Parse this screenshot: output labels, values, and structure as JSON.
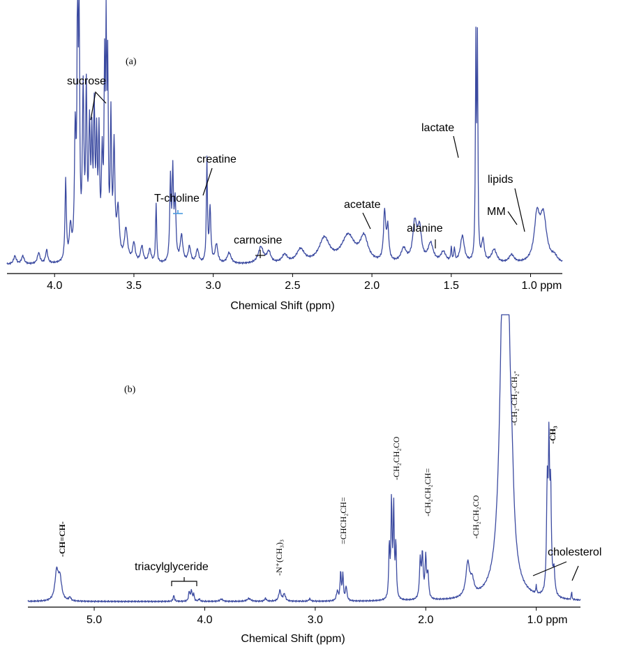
{
  "chart_data": [
    {
      "type": "line",
      "panel_label": "(a)",
      "xlabel": "Chemical Shift (ppm)",
      "xlim": [
        4.3,
        0.8
      ],
      "ticks": [
        4.0,
        3.5,
        3.0,
        2.5,
        2.0,
        1.5
      ],
      "tick_labels": [
        "4.0",
        "3.5",
        "3.0",
        "2.5",
        "2.0",
        "1.5"
      ],
      "last_tick": 1.0,
      "last_tick_label": "1.0 ppm",
      "baseline": 0.02,
      "peaks": [
        {
          "x": 4.25,
          "h": 0.03,
          "w": 0.01
        },
        {
          "x": 4.2,
          "h": 0.03,
          "w": 0.01
        },
        {
          "x": 4.1,
          "h": 0.04,
          "w": 0.01
        },
        {
          "x": 4.05,
          "h": 0.05,
          "w": 0.008
        },
        {
          "x": 3.93,
          "h": 0.3,
          "w": 0.005
        },
        {
          "x": 3.9,
          "h": 0.12,
          "w": 0.008
        },
        {
          "x": 3.87,
          "h": 0.45,
          "w": 0.006
        },
        {
          "x": 3.855,
          "h": 1.0,
          "w": 0.004
        },
        {
          "x": 3.845,
          "h": 0.85,
          "w": 0.004
        },
        {
          "x": 3.82,
          "h": 0.6,
          "w": 0.006
        },
        {
          "x": 3.8,
          "h": 0.58,
          "w": 0.005
        },
        {
          "x": 3.78,
          "h": 0.45,
          "w": 0.006
        },
        {
          "x": 3.765,
          "h": 0.38,
          "w": 0.005
        },
        {
          "x": 3.75,
          "h": 0.5,
          "w": 0.005
        },
        {
          "x": 3.735,
          "h": 0.4,
          "w": 0.005
        },
        {
          "x": 3.72,
          "h": 0.42,
          "w": 0.005
        },
        {
          "x": 3.7,
          "h": 0.35,
          "w": 0.006
        },
        {
          "x": 3.685,
          "h": 0.62,
          "w": 0.004
        },
        {
          "x": 3.675,
          "h": 0.75,
          "w": 0.004
        },
        {
          "x": 3.665,
          "h": 0.64,
          "w": 0.004
        },
        {
          "x": 3.645,
          "h": 0.5,
          "w": 0.005
        },
        {
          "x": 3.625,
          "h": 0.4,
          "w": 0.006
        },
        {
          "x": 3.6,
          "h": 0.18,
          "w": 0.01
        },
        {
          "x": 3.55,
          "h": 0.12,
          "w": 0.012
        },
        {
          "x": 3.5,
          "h": 0.07,
          "w": 0.01
        },
        {
          "x": 3.45,
          "h": 0.06,
          "w": 0.01
        },
        {
          "x": 3.4,
          "h": 0.05,
          "w": 0.01
        },
        {
          "x": 3.36,
          "h": 0.22,
          "w": 0.004
        },
        {
          "x": 3.27,
          "h": 0.3,
          "w": 0.005
        },
        {
          "x": 3.255,
          "h": 0.32,
          "w": 0.005
        },
        {
          "x": 3.24,
          "h": 0.22,
          "w": 0.006
        },
        {
          "x": 3.2,
          "h": 0.1,
          "w": 0.01
        },
        {
          "x": 3.15,
          "h": 0.06,
          "w": 0.01
        },
        {
          "x": 3.1,
          "h": 0.05,
          "w": 0.01
        },
        {
          "x": 3.04,
          "h": 0.38,
          "w": 0.004
        },
        {
          "x": 3.02,
          "h": 0.2,
          "w": 0.006
        },
        {
          "x": 2.98,
          "h": 0.07,
          "w": 0.01
        },
        {
          "x": 2.9,
          "h": 0.04,
          "w": 0.015
        },
        {
          "x": 2.7,
          "h": 0.06,
          "w": 0.02
        },
        {
          "x": 2.65,
          "h": 0.04,
          "w": 0.015
        },
        {
          "x": 2.55,
          "h": 0.03,
          "w": 0.02
        },
        {
          "x": 2.45,
          "h": 0.05,
          "w": 0.03
        },
        {
          "x": 2.3,
          "h": 0.09,
          "w": 0.04
        },
        {
          "x": 2.15,
          "h": 0.1,
          "w": 0.05
        },
        {
          "x": 2.05,
          "h": 0.09,
          "w": 0.03
        },
        {
          "x": 1.92,
          "h": 0.18,
          "w": 0.008
        },
        {
          "x": 1.9,
          "h": 0.12,
          "w": 0.008
        },
        {
          "x": 1.8,
          "h": 0.05,
          "w": 0.02
        },
        {
          "x": 1.73,
          "h": 0.14,
          "w": 0.015
        },
        {
          "x": 1.7,
          "h": 0.12,
          "w": 0.015
        },
        {
          "x": 1.63,
          "h": 0.07,
          "w": 0.02
        },
        {
          "x": 1.55,
          "h": 0.04,
          "w": 0.02
        },
        {
          "x": 1.5,
          "h": 0.05,
          "w": 0.004
        },
        {
          "x": 1.48,
          "h": 0.05,
          "w": 0.004
        },
        {
          "x": 1.43,
          "h": 0.1,
          "w": 0.015
        },
        {
          "x": 1.345,
          "h": 0.78,
          "w": 0.0035
        },
        {
          "x": 1.335,
          "h": 0.78,
          "w": 0.0035
        },
        {
          "x": 1.3,
          "h": 0.08,
          "w": 0.01
        },
        {
          "x": 1.23,
          "h": 0.05,
          "w": 0.02
        },
        {
          "x": 1.12,
          "h": 0.03,
          "w": 0.02
        },
        {
          "x": 0.96,
          "h": 0.16,
          "w": 0.02
        },
        {
          "x": 0.92,
          "h": 0.17,
          "w": 0.025
        },
        {
          "x": 0.85,
          "h": 0.02,
          "w": 0.02
        }
      ],
      "annotations": [
        {
          "label": "sucrose",
          "x": 3.85
        },
        {
          "label": "T-choline",
          "x": 3.22
        },
        {
          "label": "creatine",
          "x": 3.03
        },
        {
          "label": "carnosine",
          "x": 2.7
        },
        {
          "label": "acetate",
          "x": 1.92
        },
        {
          "label": "alanine",
          "x": 1.48
        },
        {
          "label": "lactate",
          "x": 1.33
        },
        {
          "label": "lipids",
          "x": 0.92
        },
        {
          "label": "MM",
          "x": 0.96
        }
      ]
    },
    {
      "type": "line",
      "panel_label": "(b)",
      "xlabel": "Chemical Shift (ppm)",
      "xlim": [
        5.6,
        0.6
      ],
      "ticks": [
        5.0,
        4.0,
        3.0,
        2.0
      ],
      "tick_labels": [
        "5.0",
        "4.0",
        "3.0",
        "2.0"
      ],
      "last_tick": 1.0,
      "last_tick_label": "1.0 ppm",
      "baseline": 0.0,
      "peaks": [
        {
          "x": 5.34,
          "h": 0.12,
          "w": 0.018
        },
        {
          "x": 5.31,
          "h": 0.09,
          "w": 0.018
        },
        {
          "x": 5.22,
          "h": 0.015,
          "w": 0.01
        },
        {
          "x": 4.28,
          "h": 0.025,
          "w": 0.007
        },
        {
          "x": 4.14,
          "h": 0.04,
          "w": 0.007
        },
        {
          "x": 4.12,
          "h": 0.045,
          "w": 0.007
        },
        {
          "x": 4.1,
          "h": 0.03,
          "w": 0.006
        },
        {
          "x": 4.05,
          "h": 0.01,
          "w": 0.008
        },
        {
          "x": 3.85,
          "h": 0.01,
          "w": 0.015
        },
        {
          "x": 3.6,
          "h": 0.012,
          "w": 0.02
        },
        {
          "x": 3.45,
          "h": 0.012,
          "w": 0.01
        },
        {
          "x": 3.32,
          "h": 0.045,
          "w": 0.012
        },
        {
          "x": 3.28,
          "h": 0.03,
          "w": 0.012
        },
        {
          "x": 3.05,
          "h": 0.01,
          "w": 0.01
        },
        {
          "x": 2.8,
          "h": 0.04,
          "w": 0.01
        },
        {
          "x": 2.77,
          "h": 0.12,
          "w": 0.006
        },
        {
          "x": 2.75,
          "h": 0.11,
          "w": 0.006
        },
        {
          "x": 2.72,
          "h": 0.06,
          "w": 0.008
        },
        {
          "x": 2.33,
          "h": 0.22,
          "w": 0.006
        },
        {
          "x": 2.31,
          "h": 0.4,
          "w": 0.006
        },
        {
          "x": 2.29,
          "h": 0.38,
          "w": 0.006
        },
        {
          "x": 2.27,
          "h": 0.22,
          "w": 0.006
        },
        {
          "x": 2.05,
          "h": 0.16,
          "w": 0.008
        },
        {
          "x": 2.03,
          "h": 0.18,
          "w": 0.008
        },
        {
          "x": 2.0,
          "h": 0.17,
          "w": 0.008
        },
        {
          "x": 1.98,
          "h": 0.1,
          "w": 0.008
        },
        {
          "x": 1.62,
          "h": 0.14,
          "w": 0.02
        },
        {
          "x": 1.58,
          "h": 0.06,
          "w": 0.02
        },
        {
          "x": 1.3,
          "h": 1.2,
          "w": 0.035
        },
        {
          "x": 1.26,
          "h": 1.0,
          "w": 0.03
        },
        {
          "x": 1.22,
          "h": 0.2,
          "w": 0.02
        },
        {
          "x": 1.0,
          "h": 0.035,
          "w": 0.004
        },
        {
          "x": 0.9,
          "h": 0.45,
          "w": 0.008
        },
        {
          "x": 0.885,
          "h": 0.55,
          "w": 0.006
        },
        {
          "x": 0.87,
          "h": 0.42,
          "w": 0.008
        },
        {
          "x": 0.84,
          "h": 0.1,
          "w": 0.01
        },
        {
          "x": 0.68,
          "h": 0.04,
          "w": 0.003
        }
      ],
      "annotations": [
        {
          "label": "-CH=CH-",
          "x": 5.33
        },
        {
          "label": "triacylglyceride",
          "x": 4.2
        },
        {
          "label": "-N⁺(CH₃)₃",
          "x": 3.3
        },
        {
          "label": "=CHCH₂CH=",
          "x": 2.76
        },
        {
          "label": "-CH₂CH₂CO",
          "x": 2.3
        },
        {
          "label": "-CH₂CH₂CH=",
          "x": 2.02
        },
        {
          "label": "-CH₂CH₂CO",
          "x": 1.6
        },
        {
          "label": "-CH₂-CH₂-CH₂-",
          "x": 1.27
        },
        {
          "label": "-CH₃",
          "x": 0.89
        },
        {
          "label": "cholesterol",
          "x": 0.68
        }
      ]
    }
  ]
}
